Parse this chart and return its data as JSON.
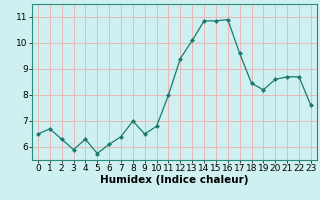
{
  "x": [
    0,
    1,
    2,
    3,
    4,
    5,
    6,
    7,
    8,
    9,
    10,
    11,
    12,
    13,
    14,
    15,
    16,
    17,
    18,
    19,
    20,
    21,
    22,
    23
  ],
  "y": [
    6.5,
    6.7,
    6.3,
    5.9,
    6.3,
    5.75,
    6.1,
    6.4,
    7.0,
    6.5,
    6.8,
    8.0,
    9.4,
    10.1,
    10.85,
    10.85,
    10.9,
    9.6,
    8.45,
    8.2,
    8.6,
    8.7,
    8.7,
    7.6
  ],
  "xlabel": "Humidex (Indice chaleur)",
  "ylabel": "",
  "ylim": [
    5.5,
    11.5
  ],
  "xlim": [
    -0.5,
    23.5
  ],
  "line_color": "#1a7a6e",
  "marker_color": "#1a7a6e",
  "bg_color": "#cff0f0",
  "grid_color": "#e8b8b8",
  "xlabel_fontsize": 7.5,
  "tick_fontsize": 6.5,
  "yticks": [
    6,
    7,
    8,
    9,
    10,
    11
  ],
  "xticks": [
    0,
    1,
    2,
    3,
    4,
    5,
    6,
    7,
    8,
    9,
    10,
    11,
    12,
    13,
    14,
    15,
    16,
    17,
    18,
    19,
    20,
    21,
    22,
    23
  ]
}
